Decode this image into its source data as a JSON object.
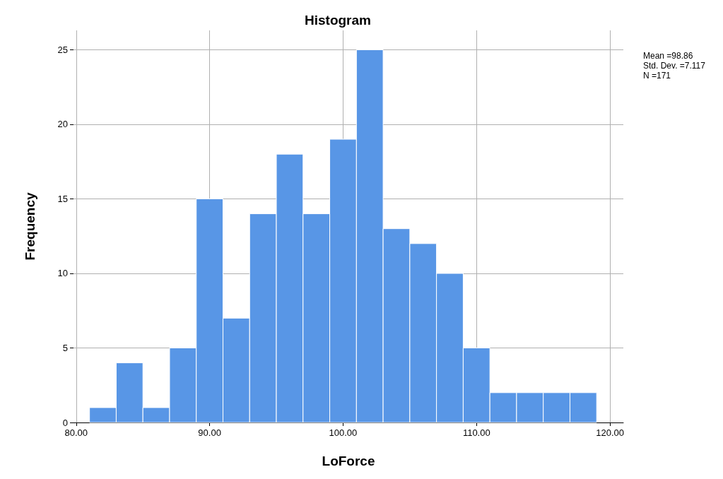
{
  "chart_data": {
    "type": "histogram",
    "title": "Histogram",
    "xlabel": "LoForce",
    "ylabel": "Frequency",
    "bins": [
      81,
      83,
      85,
      87,
      89,
      91,
      93,
      95,
      97,
      99,
      101,
      103,
      105,
      107,
      109,
      111,
      113,
      115,
      117,
      119
    ],
    "values": [
      1,
      4,
      1,
      5,
      15,
      7,
      14,
      18,
      14,
      19,
      25,
      13,
      12,
      10,
      5,
      2,
      2,
      2,
      2
    ],
    "color": "#5896e6",
    "xlim": [
      79.8,
      121
    ],
    "xticks": [
      {
        "value": 80,
        "label": "80.00"
      },
      {
        "value": 90,
        "label": "90.00"
      },
      {
        "value": 100,
        "label": "100.00"
      },
      {
        "value": 110,
        "label": "110.00"
      },
      {
        "value": 120,
        "label": "120.00"
      }
    ],
    "ylim": [
      0,
      26.3
    ],
    "yticks": [
      0,
      5,
      10,
      15,
      20,
      25
    ],
    "grid": true,
    "annotations": [
      "Mean =98.86",
      "Std. Dev. =7.117",
      "N =171"
    ]
  }
}
